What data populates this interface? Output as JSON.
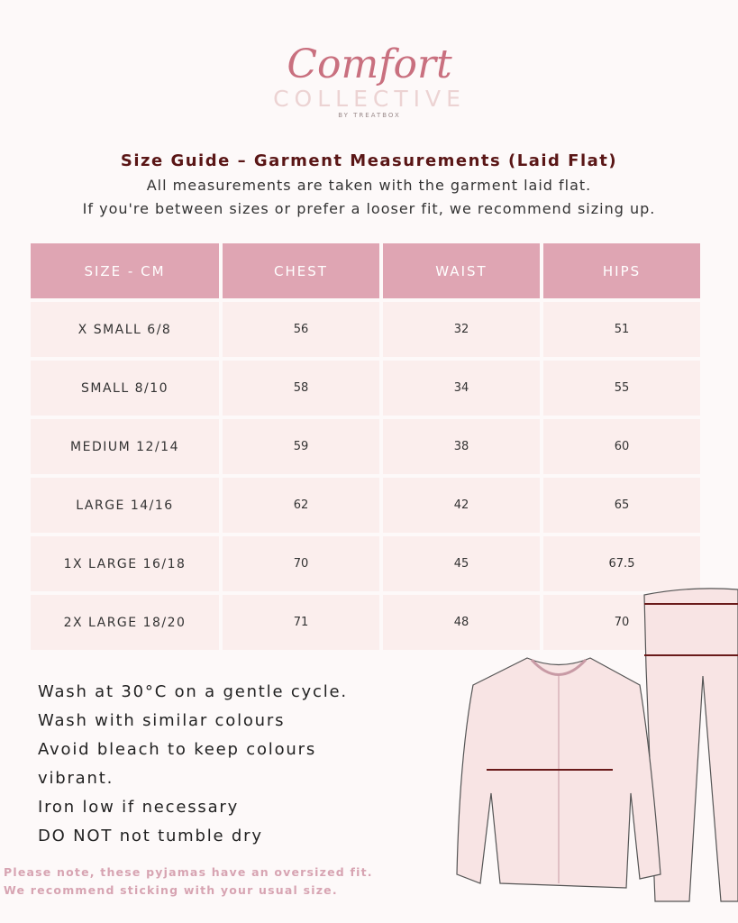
{
  "logo": {
    "script": "Comfort",
    "collective": "COLLECTIVE",
    "by": "BY TREATBOX"
  },
  "title": "Size Guide – Garment Measurements (Laid Flat)",
  "subtitle1": "All measurements are taken with the garment laid flat.",
  "subtitle2": "If you're between sizes or prefer a looser fit, we recommend sizing up.",
  "table": {
    "headers": [
      "SIZE - CM",
      "CHEST",
      "WAIST",
      "HIPS"
    ],
    "rows": [
      [
        "X SMALL 6/8",
        "56",
        "32",
        "51"
      ],
      [
        "SMALL 8/10",
        "58",
        "34",
        "55"
      ],
      [
        "MEDIUM 12/14",
        "59",
        "38",
        "60"
      ],
      [
        "LARGE 14/16",
        "62",
        "42",
        "65"
      ],
      [
        "1X LARGE 16/18",
        "70",
        "45",
        "67.5"
      ],
      [
        "2X LARGE 18/20",
        "71",
        "48",
        "70"
      ]
    ]
  },
  "care": [
    "Wash at 30°C on a gentle cycle.",
    "Wash with similar colours",
    "Avoid bleach to keep colours",
    "vibrant.",
    "Iron low if necessary",
    "DO NOT not tumble dry"
  ],
  "note": [
    "Please note, these pyjamas have an oversized fit.",
    "We recommend sticking with your usual size."
  ],
  "colors": {
    "header": "#dfa5b3",
    "cell": "#fbeeed",
    "title": "#5a1616",
    "note": "#d7a4b2"
  }
}
